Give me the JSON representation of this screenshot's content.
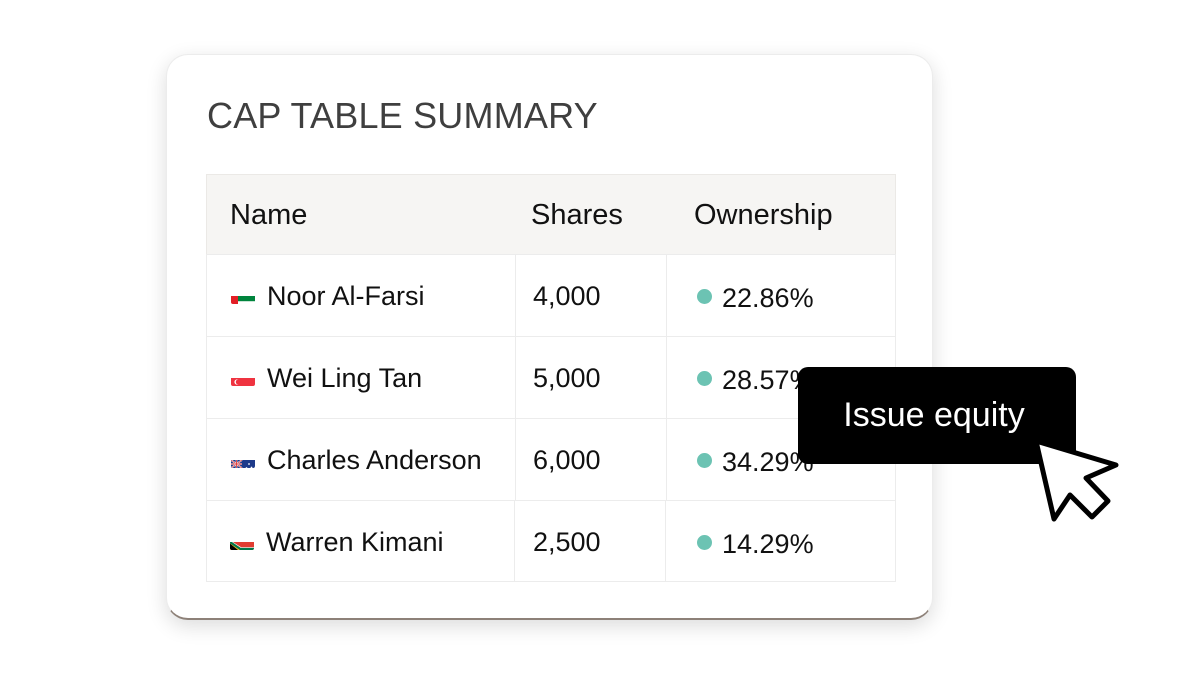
{
  "card": {
    "title": "CAP TABLE SUMMARY"
  },
  "table": {
    "headers": {
      "name": "Name",
      "shares": "Shares",
      "ownership": "Ownership"
    },
    "rows": [
      {
        "flag": "uae-flag-icon",
        "name": "Noor Al-Farsi",
        "shares": "4,000",
        "ownership": "22.86%"
      },
      {
        "flag": "singapore-flag-icon",
        "name": "Wei Ling Tan",
        "shares": "5,000",
        "ownership": "28.57%"
      },
      {
        "flag": "australia-flag-icon",
        "name": "Charles Anderson",
        "shares": "6,000",
        "ownership": "34.29%"
      },
      {
        "flag": "south-africa-flag-icon",
        "name": "Warren Kimani",
        "shares": "2,500",
        "ownership": "14.29%"
      }
    ]
  },
  "tooltip": {
    "label": "Issue equity"
  },
  "colors": {
    "status_dot": "#6cc3b3",
    "header_bg": "#f6f5f3",
    "tooltip_bg": "#000000",
    "title_text": "#3f3f3f"
  }
}
